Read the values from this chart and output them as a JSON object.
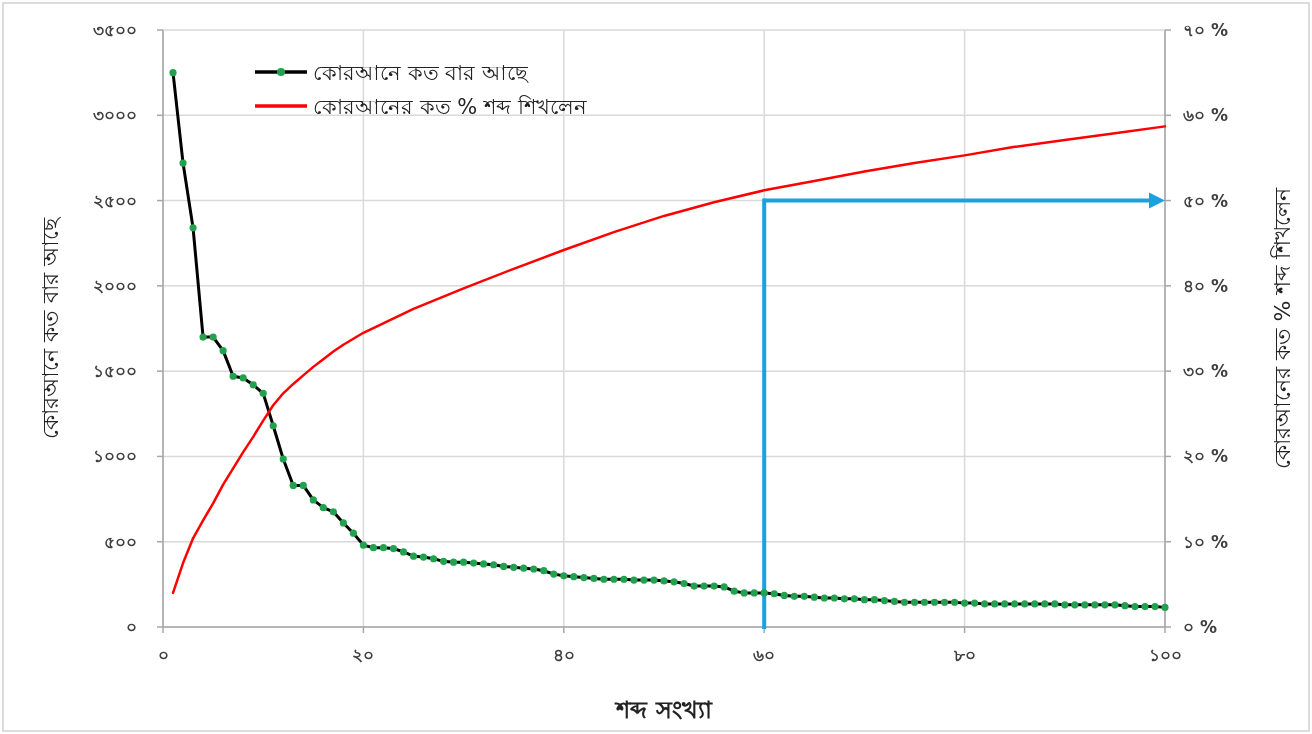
{
  "chart_data": {
    "type": "line",
    "xlabel": "শব্দ সংখ্যা",
    "ylabel": "কোরআনে কত বার আছে",
    "y2label": "কোরআনের কত % শব্দ শিখলেন",
    "x": [
      1,
      2,
      3,
      4,
      5,
      6,
      7,
      8,
      9,
      10,
      11,
      12,
      13,
      14,
      15,
      16,
      17,
      18,
      19,
      20,
      21,
      22,
      23,
      24,
      25,
      26,
      27,
      28,
      29,
      30,
      31,
      32,
      33,
      34,
      35,
      36,
      37,
      38,
      39,
      40,
      41,
      42,
      43,
      44,
      45,
      46,
      47,
      48,
      49,
      50,
      51,
      52,
      53,
      54,
      55,
      56,
      57,
      58,
      59,
      60,
      61,
      62,
      63,
      64,
      65,
      66,
      67,
      68,
      69,
      70,
      71,
      72,
      73,
      74,
      75,
      76,
      77,
      78,
      79,
      80,
      81,
      82,
      83,
      84,
      85,
      86,
      87,
      88,
      89,
      90,
      91,
      92,
      93,
      94,
      95,
      96,
      97,
      98,
      99,
      100
    ],
    "series": [
      {
        "name": "কোরআনে কত বার আছে",
        "color": "#000000",
        "marker": "circle",
        "values": [
          3250,
          2720,
          2340,
          1700,
          1700,
          1620,
          1470,
          1460,
          1420,
          1370,
          1180,
          985,
          830,
          830,
          745,
          700,
          675,
          610,
          550,
          480,
          465,
          465,
          460,
          440,
          415,
          410,
          400,
          385,
          380,
          380,
          375,
          370,
          365,
          355,
          350,
          345,
          340,
          330,
          310,
          300,
          295,
          290,
          285,
          280,
          280,
          280,
          275,
          275,
          275,
          270,
          265,
          255,
          240,
          240,
          240,
          235,
          210,
          200,
          200,
          200,
          195,
          185,
          180,
          180,
          175,
          170,
          170,
          165,
          165,
          160,
          160,
          155,
          150,
          145,
          145,
          145,
          145,
          145,
          145,
          140,
          140,
          135,
          135,
          135,
          135,
          135,
          135,
          135,
          135,
          130,
          130,
          130,
          130,
          130,
          130,
          125,
          120,
          120,
          120,
          115
        ]
      },
      {
        "name": "কোরআনের কত % শব্দ শিখলেন",
        "color": "#ff0000",
        "marker": "none",
        "axis": "y2",
        "x": [
          1,
          2,
          3,
          4,
          5,
          6,
          7,
          8,
          9,
          10,
          11,
          12,
          13,
          14,
          15,
          16,
          17,
          18,
          19,
          20,
          25,
          30,
          35,
          40,
          45,
          50,
          55,
          60,
          65,
          70,
          75,
          80,
          85,
          90,
          95,
          100
        ],
        "values": [
          4,
          7.5,
          10.4,
          12.5,
          14.5,
          16.7,
          18.6,
          20.5,
          22.3,
          24.2,
          26,
          27.4,
          28.5,
          29.5,
          30.5,
          31.4,
          32.3,
          33.1,
          33.8,
          34.5,
          37.3,
          39.7,
          42,
          44.2,
          46.3,
          48.2,
          49.8,
          51.2,
          52.3,
          53.4,
          54.4,
          55.3,
          56.3,
          57.1,
          57.9,
          58.7
        ]
      }
    ],
    "xlim": [
      0,
      100
    ],
    "xticks": [
      {
        "value": 0,
        "label": "০"
      },
      {
        "value": 20,
        "label": "২০"
      },
      {
        "value": 40,
        "label": "৪০"
      },
      {
        "value": 60,
        "label": "৬০"
      },
      {
        "value": 80,
        "label": "৮০"
      },
      {
        "value": 100,
        "label": "১০০"
      }
    ],
    "ylim": [
      0,
      3500
    ],
    "yticks": [
      {
        "value": 0,
        "label": "০"
      },
      {
        "value": 500,
        "label": "৫০০"
      },
      {
        "value": 1000,
        "label": "১০০০"
      },
      {
        "value": 1500,
        "label": "১৫০০"
      },
      {
        "value": 2000,
        "label": "২০০০"
      },
      {
        "value": 2500,
        "label": "২৫০০"
      },
      {
        "value": 3000,
        "label": "৩০০০"
      },
      {
        "value": 3500,
        "label": "৩৫০০"
      }
    ],
    "y2lim": [
      0,
      70
    ],
    "y2ticks": [
      {
        "value": 0,
        "label": "০ %"
      },
      {
        "value": 10,
        "label": "১০ %"
      },
      {
        "value": 20,
        "label": "২০ %"
      },
      {
        "value": 30,
        "label": "৩০ %"
      },
      {
        "value": 40,
        "label": "৪০ %"
      },
      {
        "value": 50,
        "label": "৫০ %"
      },
      {
        "value": 60,
        "label": "৬০ %"
      },
      {
        "value": 70,
        "label": "৭০ %"
      }
    ],
    "ref_lines": [
      {
        "axis": "x",
        "value": 60,
        "color": "#1ba1e2"
      },
      {
        "axis": "y2",
        "value": 50,
        "color": "#1ba1e2"
      }
    ],
    "grid": true,
    "legend": "top left"
  }
}
